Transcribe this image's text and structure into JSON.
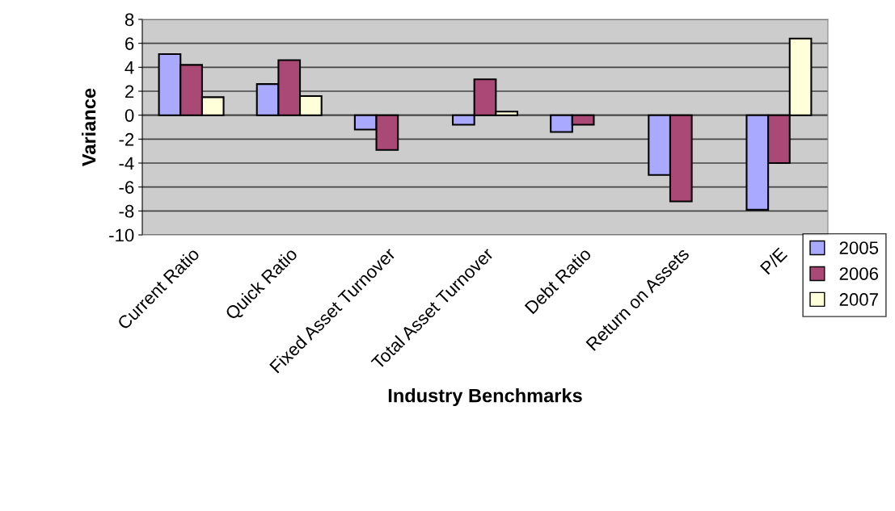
{
  "chart_data": {
    "type": "bar",
    "xlabel": "Industry Benchmarks",
    "ylabel": "Variance",
    "categories": [
      "Current Ratio",
      "Quick Ratio",
      "Fixed Asset Turnover",
      "Total Asset Turnover",
      "Debt Ratio",
      "Return on Assets",
      "P/E"
    ],
    "series": [
      {
        "name": "2005",
        "color": "#a9a9ff",
        "values": [
          5.1,
          2.6,
          -1.2,
          -0.8,
          -1.4,
          -5.0,
          -7.9
        ]
      },
      {
        "name": "2006",
        "color": "#aa4876",
        "values": [
          4.2,
          4.6,
          -2.9,
          3.0,
          -0.8,
          -7.2,
          -4.0
        ]
      },
      {
        "name": "2007",
        "color": "#ffffd9",
        "values": [
          1.5,
          1.6,
          null,
          0.3,
          null,
          null,
          6.4
        ]
      }
    ],
    "ylim": [
      -10,
      8
    ],
    "yticks": [
      -10,
      -8,
      -6,
      -4,
      -2,
      0,
      2,
      4,
      6,
      8
    ],
    "grid": "y",
    "legend": "right"
  }
}
